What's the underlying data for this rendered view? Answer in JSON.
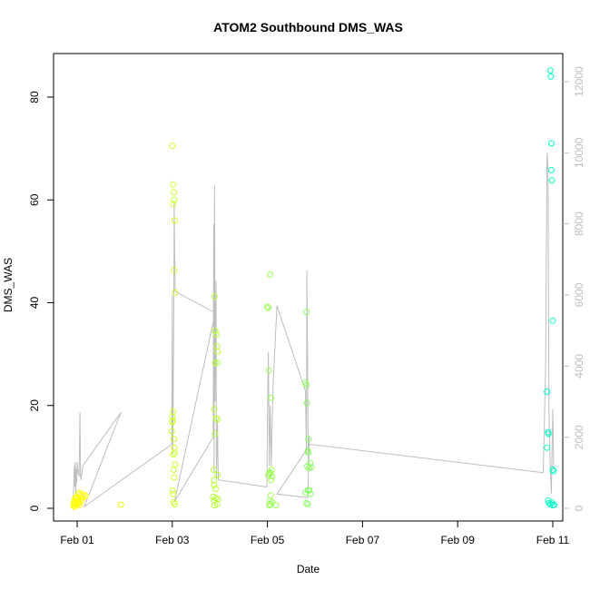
{
  "chart_data": {
    "type": "scatter",
    "title": "ATOM2 Southbound DMS_WAS",
    "xlabel": "Date",
    "ylabel": "DMS_WAS",
    "x_ticks": [
      "Feb 01",
      "Feb 03",
      "Feb 05",
      "Feb 07",
      "Feb 09",
      "Feb 11"
    ],
    "y_ticks": [
      0,
      20,
      40,
      60,
      80
    ],
    "y2_ticks": [
      0,
      2000,
      4000,
      6000,
      8000,
      10000,
      12000
    ],
    "ylim": [
      0,
      88
    ],
    "y2lim": [
      0,
      12400
    ],
    "xlim_days": [
      0.0,
      10.25
    ],
    "legend": "none",
    "grid": false,
    "point_series": {
      "name": "",
      "x_unit": "days since Feb 01",
      "points": [
        [
          -0.08,
          0.5
        ],
        [
          -0.07,
          1.0
        ],
        [
          -0.06,
          0.8
        ],
        [
          -0.05,
          1.5
        ],
        [
          -0.05,
          0.3
        ],
        [
          -0.04,
          2.0
        ],
        [
          -0.03,
          1.2
        ],
        [
          -0.02,
          0.6
        ],
        [
          -0.01,
          1.8
        ],
        [
          0.0,
          2.2
        ],
        [
          0.01,
          0.9
        ],
        [
          0.02,
          1.4
        ],
        [
          0.03,
          2.8
        ],
        [
          0.04,
          1.1
        ],
        [
          0.05,
          3.0
        ],
        [
          0.06,
          0.7
        ],
        [
          0.07,
          1.9
        ],
        [
          0.08,
          2.5
        ],
        [
          0.1,
          1.6
        ],
        [
          0.12,
          2.2
        ],
        [
          0.14,
          2.7
        ],
        [
          0.18,
          2.4
        ],
        [
          0.92,
          0.7
        ],
        [
          2.0,
          70.5
        ],
        [
          2.02,
          63.0
        ],
        [
          2.03,
          61.5
        ],
        [
          2.04,
          60.0
        ],
        [
          2.02,
          59.2
        ],
        [
          2.05,
          56.0
        ],
        [
          2.04,
          46.3
        ],
        [
          2.06,
          42.0
        ],
        [
          2.0,
          17.8
        ],
        [
          2.01,
          17.0
        ],
        [
          2.02,
          18.8
        ],
        [
          2.0,
          16.8
        ],
        [
          1.99,
          15.0
        ],
        [
          2.03,
          13.5
        ],
        [
          2.04,
          11.8
        ],
        [
          2.02,
          10.5
        ],
        [
          2.05,
          10.8
        ],
        [
          2.06,
          8.5
        ],
        [
          2.03,
          7.5
        ],
        [
          2.04,
          6.0
        ],
        [
          2.01,
          3.5
        ],
        [
          2.02,
          2.8
        ],
        [
          2.03,
          1.2
        ],
        [
          2.05,
          0.8
        ],
        [
          2.87,
          7.5
        ],
        [
          2.88,
          5.5
        ],
        [
          2.89,
          41.2
        ],
        [
          2.9,
          34.5
        ],
        [
          2.93,
          33.8
        ],
        [
          2.94,
          31.5
        ],
        [
          2.95,
          30.5
        ],
        [
          2.9,
          28.3
        ],
        [
          2.95,
          28.3
        ],
        [
          2.88,
          19.3
        ],
        [
          2.92,
          17.5
        ],
        [
          2.95,
          17.3
        ],
        [
          2.9,
          14.5
        ],
        [
          2.88,
          4.5
        ],
        [
          2.91,
          3.8
        ],
        [
          2.95,
          6.5
        ],
        [
          2.86,
          2.2
        ],
        [
          2.88,
          1.5
        ],
        [
          2.92,
          2.0
        ],
        [
          2.94,
          0.8
        ],
        [
          2.89,
          0.6
        ],
        [
          2.96,
          1.8
        ],
        [
          4.0,
          39.2
        ],
        [
          4.02,
          39.0
        ],
        [
          4.06,
          45.5
        ],
        [
          4.03,
          26.8
        ],
        [
          4.08,
          21.5
        ],
        [
          4.02,
          6.5
        ],
        [
          4.05,
          7.0
        ],
        [
          4.06,
          6.8
        ],
        [
          4.09,
          7.5
        ],
        [
          4.08,
          5.5
        ],
        [
          4.1,
          6.2
        ],
        [
          4.07,
          2.5
        ],
        [
          4.05,
          1.5
        ],
        [
          4.04,
          0.6
        ],
        [
          4.06,
          0.8
        ],
        [
          4.1,
          1.2
        ],
        [
          4.18,
          0.6
        ],
        [
          4.82,
          38.2
        ],
        [
          4.8,
          24.5
        ],
        [
          4.82,
          24.0
        ],
        [
          4.83,
          20.5
        ],
        [
          4.86,
          13.5
        ],
        [
          4.85,
          11.2
        ],
        [
          4.86,
          10.8
        ],
        [
          4.9,
          8.8
        ],
        [
          4.84,
          8.2
        ],
        [
          4.88,
          7.8
        ],
        [
          4.92,
          8.0
        ],
        [
          4.8,
          3.0
        ],
        [
          4.85,
          3.5
        ],
        [
          4.88,
          3.5
        ],
        [
          4.9,
          2.8
        ],
        [
          4.82,
          1.0
        ],
        [
          4.85,
          0.8
        ],
        [
          9.95,
          85.2
        ],
        [
          9.96,
          84.0
        ],
        [
          9.97,
          71.0
        ],
        [
          9.97,
          65.8
        ],
        [
          9.98,
          63.8
        ],
        [
          10.0,
          36.5
        ],
        [
          9.88,
          22.7
        ],
        [
          9.9,
          14.8
        ],
        [
          9.91,
          14.5
        ],
        [
          9.88,
          11.8
        ],
        [
          10.0,
          7.5
        ],
        [
          10.02,
          7.2
        ],
        [
          9.9,
          1.5
        ],
        [
          9.92,
          1.0
        ],
        [
          9.95,
          0.8
        ],
        [
          9.98,
          1.1
        ],
        [
          10.0,
          0.6
        ],
        [
          10.03,
          0.7
        ]
      ]
    },
    "line_series": {
      "name": "",
      "axis": "right",
      "x_unit": "days since Feb 01",
      "points": [
        [
          -0.08,
          300
        ],
        [
          -0.06,
          1200
        ],
        [
          -0.05,
          600
        ],
        [
          -0.04,
          1300
        ],
        [
          -0.03,
          400
        ],
        [
          -0.02,
          1100
        ],
        [
          -0.01,
          700
        ],
        [
          0.0,
          1300
        ],
        [
          0.02,
          1000
        ],
        [
          0.04,
          900
        ],
        [
          0.06,
          2700
        ],
        [
          0.07,
          900
        ],
        [
          0.08,
          800
        ],
        [
          0.12,
          1200
        ],
        [
          0.92,
          2700
        ],
        [
          0.15,
          50
        ],
        [
          1.99,
          1800
        ],
        [
          2.0,
          6000
        ],
        [
          2.01,
          1500
        ],
        [
          2.03,
          5000
        ],
        [
          2.04,
          8600
        ],
        [
          2.06,
          6100
        ],
        [
          2.9,
          5500
        ],
        [
          2.05,
          200
        ],
        [
          2.86,
          2000
        ],
        [
          2.87,
          8000
        ],
        [
          2.88,
          1000
        ],
        [
          2.89,
          9100
        ],
        [
          2.9,
          3000
        ],
        [
          2.92,
          6400
        ],
        [
          2.93,
          800
        ],
        [
          2.95,
          2500
        ],
        [
          2.96,
          1400
        ],
        [
          2.97,
          800
        ],
        [
          3.99,
          600
        ],
        [
          4.0,
          2500
        ],
        [
          4.02,
          4400
        ],
        [
          4.04,
          1200
        ],
        [
          4.06,
          2900
        ],
        [
          4.08,
          1200
        ],
        [
          4.12,
          3500
        ],
        [
          4.2,
          5700
        ],
        [
          4.8,
          3300
        ],
        [
          4.82,
          1500
        ],
        [
          4.83,
          6700
        ],
        [
          4.86,
          1100
        ],
        [
          4.88,
          2000
        ],
        [
          4.85,
          300
        ],
        [
          4.2,
          400
        ],
        [
          4.9,
          1800
        ],
        [
          9.8,
          1000
        ],
        [
          9.85,
          4000
        ],
        [
          9.88,
          10000
        ],
        [
          9.9,
          9500
        ],
        [
          9.92,
          2700
        ],
        [
          9.95,
          1000
        ],
        [
          9.97,
          400
        ],
        [
          10.0,
          2800
        ],
        [
          10.02,
          1100
        ]
      ]
    },
    "colors": {
      "line": "#bebebe",
      "right_axis": "#bdbdbd",
      "point_gradient_start": "#ffff00",
      "point_gradient_end": "#00ffcc"
    }
  }
}
